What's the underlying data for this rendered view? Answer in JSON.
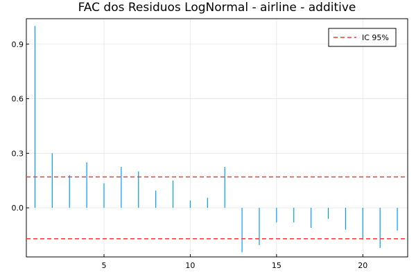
{
  "chart_data": {
    "type": "bar",
    "title": "FAC dos Residuos  LogNormal - airline - additive",
    "xlabel": "",
    "ylabel": "",
    "x": [
      1,
      2,
      3,
      4,
      5,
      6,
      7,
      8,
      9,
      10,
      11,
      12,
      13,
      14,
      15,
      16,
      17,
      18,
      19,
      20,
      21,
      22
    ],
    "series": [
      {
        "values": [
          1.0,
          0.3,
          0.18,
          0.25,
          0.135,
          0.225,
          0.2,
          0.095,
          0.15,
          0.04,
          0.055,
          0.225,
          -0.245,
          -0.205,
          -0.08,
          -0.08,
          -0.11,
          -0.06,
          -0.12,
          -0.175,
          -0.22,
          -0.125
        ],
        "color": "#009AFA"
      }
    ],
    "confidence_band": {
      "legend_label": "IC 95%",
      "upper": 0.17,
      "lower": -0.17,
      "color": "#FF3333",
      "style": "dashed"
    },
    "xlim": [
      0.5,
      22.6
    ],
    "ylim": [
      -0.27,
      1.04
    ],
    "xticks": [
      5,
      10,
      15,
      20
    ],
    "yticks": [
      0.0,
      0.3,
      0.6,
      0.9
    ],
    "ytick_labels": [
      "0.0",
      "0.3",
      "0.6",
      "0.9"
    ],
    "grid": true,
    "legend_position": "top-right"
  }
}
